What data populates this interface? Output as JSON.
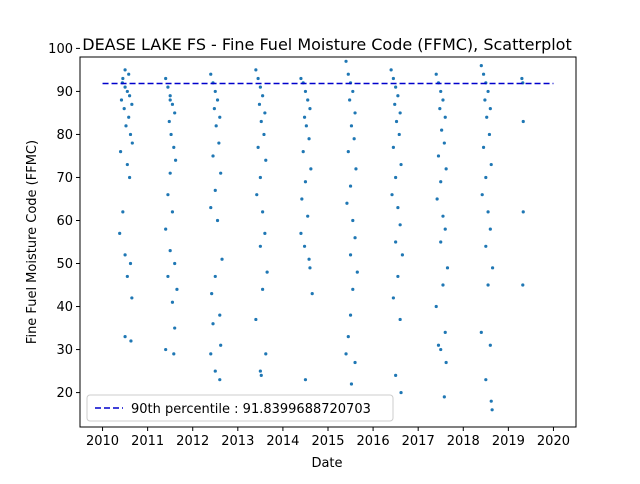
{
  "chart_data": {
    "type": "scatter",
    "title": "DEASE LAKE FS - Fine Fuel Moisture Code (FFMC), Scatterplot",
    "xlabel": "Date",
    "ylabel": "Fine Fuel Moisture Code (FFMC)",
    "xlim": [
      2009.5,
      2020.5
    ],
    "ylim": [
      12,
      98
    ],
    "x_ticks": [
      "2010",
      "2011",
      "2012",
      "2013",
      "2014",
      "2015",
      "2016",
      "2017",
      "2018",
      "2019",
      "2020"
    ],
    "y_ticks": [
      "20",
      "30",
      "40",
      "50",
      "60",
      "70",
      "80",
      "90",
      "100"
    ],
    "grid": false,
    "legend_position": "lower-left",
    "point_color": "#1f77b4",
    "reference_line": {
      "label": "90th percentile : 91.8399688720703",
      "y": 91.8399688720703,
      "color": "#0000cc",
      "style": "dashed"
    },
    "series": [
      {
        "values": [
          [
            2010.45,
            93
          ],
          [
            2010.5,
            91
          ],
          [
            2010.55,
            90
          ],
          [
            2010.6,
            89
          ],
          [
            2010.42,
            88
          ],
          [
            2010.65,
            87
          ],
          [
            2010.48,
            86
          ],
          [
            2010.58,
            84
          ],
          [
            2010.52,
            82
          ],
          [
            2010.62,
            80
          ],
          [
            2010.4,
            76
          ],
          [
            2010.55,
            73
          ],
          [
            2010.6,
            70
          ],
          [
            2010.45,
            62
          ],
          [
            2010.38,
            57
          ],
          [
            2010.5,
            52
          ],
          [
            2010.62,
            50
          ],
          [
            2010.55,
            47
          ],
          [
            2010.65,
            42
          ],
          [
            2010.5,
            33
          ],
          [
            2010.63,
            32
          ],
          [
            2010.5,
            95
          ],
          [
            2010.58,
            94
          ],
          [
            2010.44,
            92
          ],
          [
            2010.66,
            78
          ],
          [
            2011.4,
            93
          ],
          [
            2011.45,
            91
          ],
          [
            2011.5,
            89
          ],
          [
            2011.55,
            87
          ],
          [
            2011.6,
            85
          ],
          [
            2011.48,
            83
          ],
          [
            2011.52,
            80
          ],
          [
            2011.58,
            77
          ],
          [
            2011.62,
            74
          ],
          [
            2011.5,
            71
          ],
          [
            2011.45,
            66
          ],
          [
            2011.55,
            62
          ],
          [
            2011.4,
            58
          ],
          [
            2011.5,
            53
          ],
          [
            2011.6,
            50
          ],
          [
            2011.45,
            47
          ],
          [
            2011.65,
            44
          ],
          [
            2011.55,
            41
          ],
          [
            2011.6,
            35
          ],
          [
            2011.4,
            30
          ],
          [
            2011.58,
            29
          ],
          [
            2011.5,
            88
          ],
          [
            2012.4,
            94
          ],
          [
            2012.45,
            92
          ],
          [
            2012.5,
            90
          ],
          [
            2012.55,
            88
          ],
          [
            2012.48,
            86
          ],
          [
            2012.6,
            84
          ],
          [
            2012.52,
            82
          ],
          [
            2012.58,
            78
          ],
          [
            2012.45,
            75
          ],
          [
            2012.62,
            71
          ],
          [
            2012.5,
            67
          ],
          [
            2012.4,
            63
          ],
          [
            2012.55,
            60
          ],
          [
            2012.65,
            51
          ],
          [
            2012.5,
            47
          ],
          [
            2012.42,
            43
          ],
          [
            2012.6,
            38
          ],
          [
            2012.45,
            36
          ],
          [
            2012.62,
            31
          ],
          [
            2012.4,
            29
          ],
          [
            2012.5,
            25
          ],
          [
            2012.6,
            23
          ],
          [
            2013.4,
            95
          ],
          [
            2013.45,
            93
          ],
          [
            2013.5,
            91
          ],
          [
            2013.55,
            89
          ],
          [
            2013.48,
            87
          ],
          [
            2013.6,
            85
          ],
          [
            2013.52,
            83
          ],
          [
            2013.58,
            80
          ],
          [
            2013.45,
            77
          ],
          [
            2013.62,
            74
          ],
          [
            2013.5,
            70
          ],
          [
            2013.42,
            66
          ],
          [
            2013.55,
            62
          ],
          [
            2013.6,
            57
          ],
          [
            2013.5,
            54
          ],
          [
            2013.65,
            48
          ],
          [
            2013.55,
            44
          ],
          [
            2013.4,
            37
          ],
          [
            2013.62,
            29
          ],
          [
            2013.5,
            25
          ],
          [
            2013.52,
            24
          ],
          [
            2014.4,
            93
          ],
          [
            2014.45,
            92
          ],
          [
            2014.5,
            90
          ],
          [
            2014.55,
            88
          ],
          [
            2014.6,
            86
          ],
          [
            2014.48,
            84
          ],
          [
            2014.52,
            82
          ],
          [
            2014.58,
            79
          ],
          [
            2014.45,
            76
          ],
          [
            2014.62,
            72
          ],
          [
            2014.5,
            69
          ],
          [
            2014.42,
            65
          ],
          [
            2014.55,
            61
          ],
          [
            2014.4,
            57
          ],
          [
            2014.48,
            54
          ],
          [
            2014.58,
            51
          ],
          [
            2014.6,
            49
          ],
          [
            2014.65,
            43
          ],
          [
            2014.5,
            23
          ],
          [
            2015.4,
            97
          ],
          [
            2015.45,
            94
          ],
          [
            2015.5,
            92
          ],
          [
            2015.55,
            90
          ],
          [
            2015.48,
            88
          ],
          [
            2015.6,
            85
          ],
          [
            2015.52,
            82
          ],
          [
            2015.58,
            79
          ],
          [
            2015.45,
            76
          ],
          [
            2015.62,
            72
          ],
          [
            2015.5,
            68
          ],
          [
            2015.42,
            64
          ],
          [
            2015.55,
            60
          ],
          [
            2015.6,
            56
          ],
          [
            2015.5,
            52
          ],
          [
            2015.65,
            48
          ],
          [
            2015.55,
            44
          ],
          [
            2015.5,
            38
          ],
          [
            2015.45,
            33
          ],
          [
            2015.4,
            29
          ],
          [
            2015.6,
            27
          ],
          [
            2015.52,
            22
          ],
          [
            2016.4,
            95
          ],
          [
            2016.45,
            93
          ],
          [
            2016.5,
            91
          ],
          [
            2016.55,
            89
          ],
          [
            2016.48,
            87
          ],
          [
            2016.6,
            85
          ],
          [
            2016.52,
            83
          ],
          [
            2016.58,
            80
          ],
          [
            2016.45,
            77
          ],
          [
            2016.62,
            73
          ],
          [
            2016.5,
            70
          ],
          [
            2016.42,
            66
          ],
          [
            2016.55,
            63
          ],
          [
            2016.6,
            59
          ],
          [
            2016.5,
            55
          ],
          [
            2016.65,
            52
          ],
          [
            2016.55,
            47
          ],
          [
            2016.45,
            42
          ],
          [
            2016.6,
            37
          ],
          [
            2016.5,
            24
          ],
          [
            2016.62,
            20
          ],
          [
            2017.4,
            94
          ],
          [
            2017.45,
            92
          ],
          [
            2017.5,
            90
          ],
          [
            2017.55,
            88
          ],
          [
            2017.48,
            86
          ],
          [
            2017.6,
            84
          ],
          [
            2017.52,
            81
          ],
          [
            2017.58,
            78
          ],
          [
            2017.45,
            75
          ],
          [
            2017.62,
            72
          ],
          [
            2017.5,
            69
          ],
          [
            2017.42,
            65
          ],
          [
            2017.55,
            61
          ],
          [
            2017.6,
            58
          ],
          [
            2017.5,
            55
          ],
          [
            2017.65,
            49
          ],
          [
            2017.55,
            45
          ],
          [
            2017.4,
            40
          ],
          [
            2017.6,
            34
          ],
          [
            2017.45,
            31
          ],
          [
            2017.5,
            30
          ],
          [
            2017.62,
            27
          ],
          [
            2017.58,
            19
          ],
          [
            2018.4,
            96
          ],
          [
            2018.45,
            94
          ],
          [
            2018.5,
            92
          ],
          [
            2018.55,
            90
          ],
          [
            2018.48,
            88
          ],
          [
            2018.6,
            86
          ],
          [
            2018.52,
            84
          ],
          [
            2018.58,
            80
          ],
          [
            2018.45,
            77
          ],
          [
            2018.62,
            73
          ],
          [
            2018.5,
            70
          ],
          [
            2018.42,
            66
          ],
          [
            2018.55,
            62
          ],
          [
            2018.6,
            58
          ],
          [
            2018.5,
            54
          ],
          [
            2018.65,
            49
          ],
          [
            2018.55,
            45
          ],
          [
            2018.4,
            34
          ],
          [
            2018.6,
            31
          ],
          [
            2018.5,
            23
          ],
          [
            2018.62,
            18
          ],
          [
            2018.64,
            16
          ],
          [
            2019.3,
            93
          ],
          [
            2019.32,
            92
          ],
          [
            2019.33,
            83
          ],
          [
            2019.33,
            62
          ],
          [
            2019.32,
            45
          ]
        ]
      }
    ]
  }
}
